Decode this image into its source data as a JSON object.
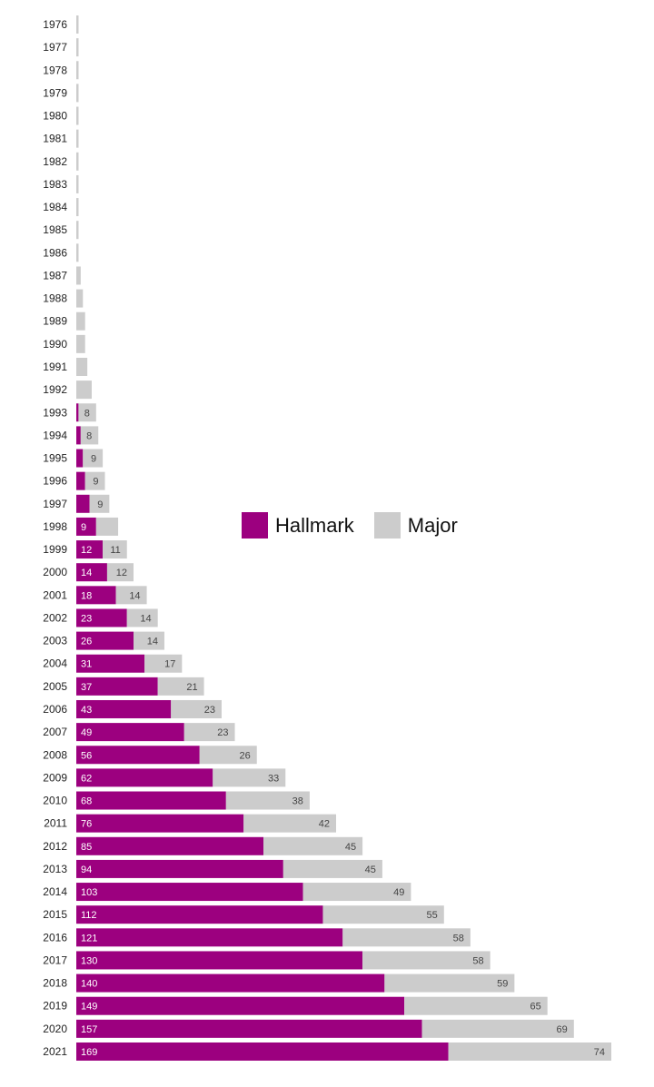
{
  "colors": {
    "hallmark": "#9c007f",
    "major": "#cccccc"
  },
  "legend": [
    {
      "name": "Hallmark",
      "color": "#9c007f"
    },
    {
      "name": "Major",
      "color": "#cccccc"
    }
  ],
  "chart_data": {
    "type": "bar",
    "orientation": "horizontal",
    "stacked": true,
    "legend_position": "middle",
    "categories": [
      "1976",
      "1977",
      "1978",
      "1979",
      "1980",
      "1981",
      "1982",
      "1983",
      "1984",
      "1985",
      "1986",
      "1987",
      "1988",
      "1989",
      "1990",
      "1991",
      "1992",
      "1993",
      "1994",
      "1995",
      "1996",
      "1997",
      "1998",
      "1999",
      "2000",
      "2001",
      "2002",
      "2003",
      "2004",
      "2005",
      "2006",
      "2007",
      "2008",
      "2009",
      "2010",
      "2011",
      "2012",
      "2013",
      "2014",
      "2015",
      "2016",
      "2017",
      "2018",
      "2019",
      "2020",
      "2021"
    ],
    "series": [
      {
        "name": "Hallmark",
        "values": [
          0,
          0,
          0,
          0,
          0,
          0,
          0,
          0,
          0,
          0,
          0,
          0,
          0,
          0,
          0,
          0,
          0,
          1,
          2,
          3,
          4,
          6,
          9,
          12,
          14,
          18,
          23,
          26,
          31,
          37,
          43,
          49,
          56,
          62,
          68,
          76,
          85,
          94,
          103,
          112,
          121,
          130,
          140,
          149,
          157,
          169
        ],
        "labels": [
          "",
          "",
          "",
          "",
          "",
          "",
          "",
          "",
          "",
          "",
          "",
          "",
          "",
          "",
          "",
          "",
          "",
          "",
          "",
          "",
          "",
          "",
          "9",
          "12",
          "14",
          "18",
          "23",
          "26",
          "31",
          "37",
          "43",
          "49",
          "56",
          "62",
          "68",
          "76",
          "85",
          "94",
          "103",
          "112",
          "121",
          "130",
          "140",
          "149",
          "157",
          "169"
        ]
      },
      {
        "name": "Major",
        "values": [
          1,
          1,
          1,
          1,
          1,
          1,
          1,
          1,
          1,
          1,
          1,
          2,
          3,
          4,
          4,
          5,
          7,
          8,
          8,
          9,
          9,
          9,
          10,
          11,
          12,
          14,
          14,
          14,
          17,
          21,
          23,
          23,
          26,
          33,
          38,
          42,
          45,
          45,
          49,
          55,
          58,
          58,
          59,
          65,
          69,
          74
        ],
        "labels": [
          "",
          "",
          "",
          "",
          "",
          "",
          "",
          "",
          "",
          "",
          "",
          "",
          "",
          "",
          "",
          "",
          "",
          "8",
          "8",
          "9",
          "9",
          "9",
          "",
          "11",
          "12",
          "14",
          "14",
          "14",
          "17",
          "21",
          "23",
          "23",
          "26",
          "33",
          "38",
          "42",
          "45",
          "45",
          "49",
          "55",
          "58",
          "58",
          "59",
          "65",
          "69",
          "74"
        ]
      }
    ],
    "xlim": [
      0,
      243
    ],
    "grid": false,
    "title": "",
    "xlabel": "",
    "ylabel": ""
  }
}
